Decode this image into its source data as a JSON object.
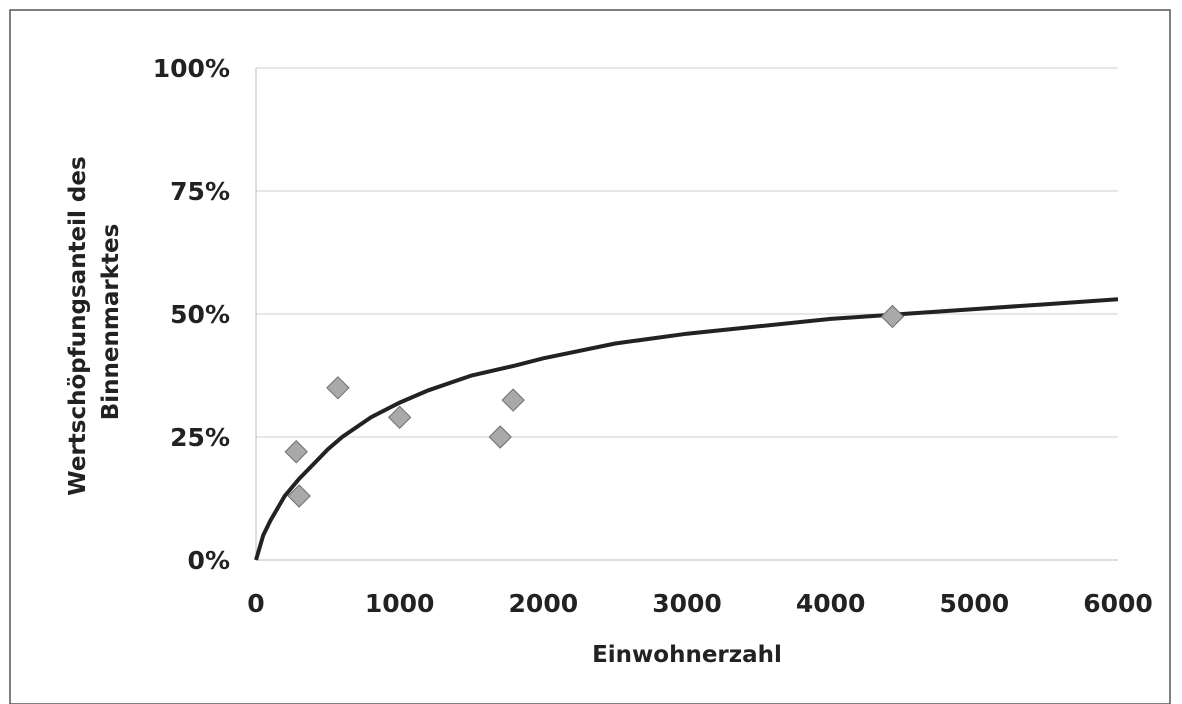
{
  "chart_data": {
    "type": "scatter",
    "xlabel": "Einwohnerzahl",
    "ylabel_lines": [
      "Wertschöpfungsanteil des",
      "Binnenmarktes"
    ],
    "xlim": [
      0,
      6000
    ],
    "ylim": [
      0,
      100
    ],
    "x_ticks": [
      0,
      1000,
      2000,
      3000,
      4000,
      5000,
      6000
    ],
    "x_tick_labels": [
      "0",
      "1000",
      "2000",
      "3000",
      "4000",
      "5000",
      "6000"
    ],
    "y_ticks": [
      0,
      25,
      50,
      75,
      100
    ],
    "y_tick_labels": [
      "0%",
      "25%",
      "50%",
      "75%",
      "100%"
    ],
    "grid": true,
    "legend": "none",
    "series": [
      {
        "kind": "scatter",
        "marker": "diamond",
        "x": [
          280,
          300,
          570,
          1000,
          1700,
          1790,
          4430
        ],
        "y": [
          22,
          13,
          35,
          29,
          25,
          32.5,
          49.5
        ]
      },
      {
        "kind": "trend-line",
        "x": [
          0,
          50,
          100,
          200,
          300,
          400,
          500,
          600,
          800,
          1000,
          1200,
          1500,
          1800,
          2000,
          2500,
          3000,
          3500,
          4000,
          4500,
          5000,
          5500,
          6000
        ],
        "y": [
          0,
          5,
          8,
          13,
          16.5,
          19.5,
          22.5,
          25,
          29,
          32,
          34.5,
          37.5,
          39.5,
          41,
          44,
          46,
          47.5,
          49,
          50,
          51,
          52,
          53
        ]
      }
    ],
    "colors": {
      "marker_fill": "#a9a9a9",
      "marker_stroke": "#6f6f6f",
      "line": "#222222",
      "grid": "#cfcfcf"
    }
  }
}
